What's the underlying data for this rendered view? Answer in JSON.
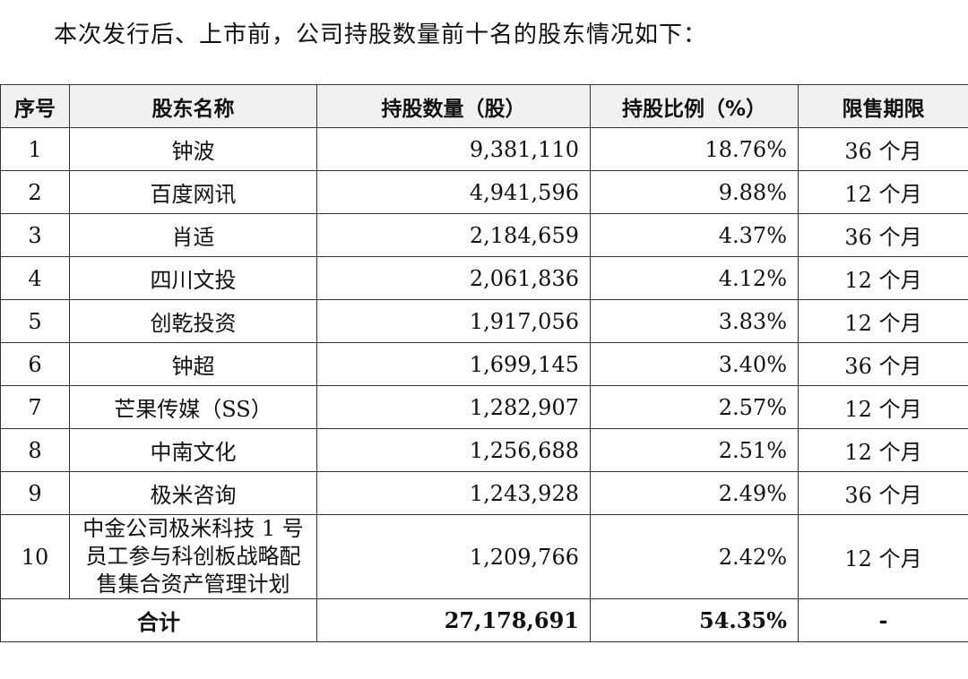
{
  "intro": "本次发行后、上市前，公司持股数量前十名的股东情况如下：",
  "table": {
    "headers": [
      "序号",
      "股东名称",
      "持股数量（股）",
      "持股比例（%）",
      "限售期限"
    ],
    "rows": [
      {
        "no": "1",
        "name": "钟波",
        "shares": "9,381,110",
        "ratio": "18.76%",
        "lockup": "36 个月"
      },
      {
        "no": "2",
        "name": "百度网讯",
        "shares": "4,941,596",
        "ratio": "9.88%",
        "lockup": "12 个月"
      },
      {
        "no": "3",
        "name": "肖适",
        "shares": "2,184,659",
        "ratio": "4.37%",
        "lockup": "36 个月"
      },
      {
        "no": "4",
        "name": "四川文投",
        "shares": "2,061,836",
        "ratio": "4.12%",
        "lockup": "12 个月"
      },
      {
        "no": "5",
        "name": "创乾投资",
        "shares": "1,917,056",
        "ratio": "3.83%",
        "lockup": "12 个月"
      },
      {
        "no": "6",
        "name": "钟超",
        "shares": "1,699,145",
        "ratio": "3.40%",
        "lockup": "36 个月"
      },
      {
        "no": "7",
        "name": "芒果传媒（SS）",
        "shares": "1,282,907",
        "ratio": "2.57%",
        "lockup": "12 个月"
      },
      {
        "no": "8",
        "name": "中南文化",
        "shares": "1,256,688",
        "ratio": "2.51%",
        "lockup": "12 个月"
      },
      {
        "no": "9",
        "name": "极米咨询",
        "shares": "1,243,928",
        "ratio": "2.49%",
        "lockup": "36 个月"
      },
      {
        "no": "10",
        "name": "中金公司极米科技 1 号员工参与科创板战略配售集合资产管理计划",
        "shares": "1,209,766",
        "ratio": "2.42%",
        "lockup": "12 个月"
      }
    ],
    "total": {
      "label": "合计",
      "shares": "27,178,691",
      "ratio": "54.35%",
      "lockup": "-"
    }
  }
}
